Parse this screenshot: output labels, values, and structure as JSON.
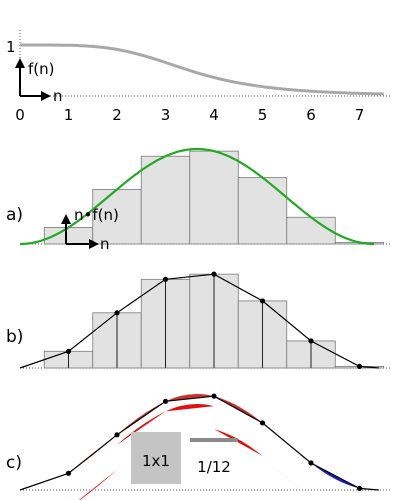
{
  "top": {
    "y_tick": "1",
    "y_label": "f(n)",
    "x_label": "n",
    "x_ticks": [
      "0",
      "1",
      "2",
      "3",
      "4",
      "5",
      "6",
      "7"
    ]
  },
  "panel_a": {
    "label": "a)",
    "y_label": "n•f(n)",
    "x_label": "n"
  },
  "panel_b": {
    "label": "b)"
  },
  "panel_c": {
    "label": "c)",
    "square_label": "1x1",
    "bar_label": "1/12"
  },
  "colors": {
    "decay_curve": "#a8a8a8",
    "green_curve": "#22aa22",
    "bar_fill": "#e2e2e2",
    "bar_stroke": "#7a7a7a",
    "red_error": "#e01010",
    "blue_error": "#1010cc",
    "dotted_axis": "#555555"
  }
}
